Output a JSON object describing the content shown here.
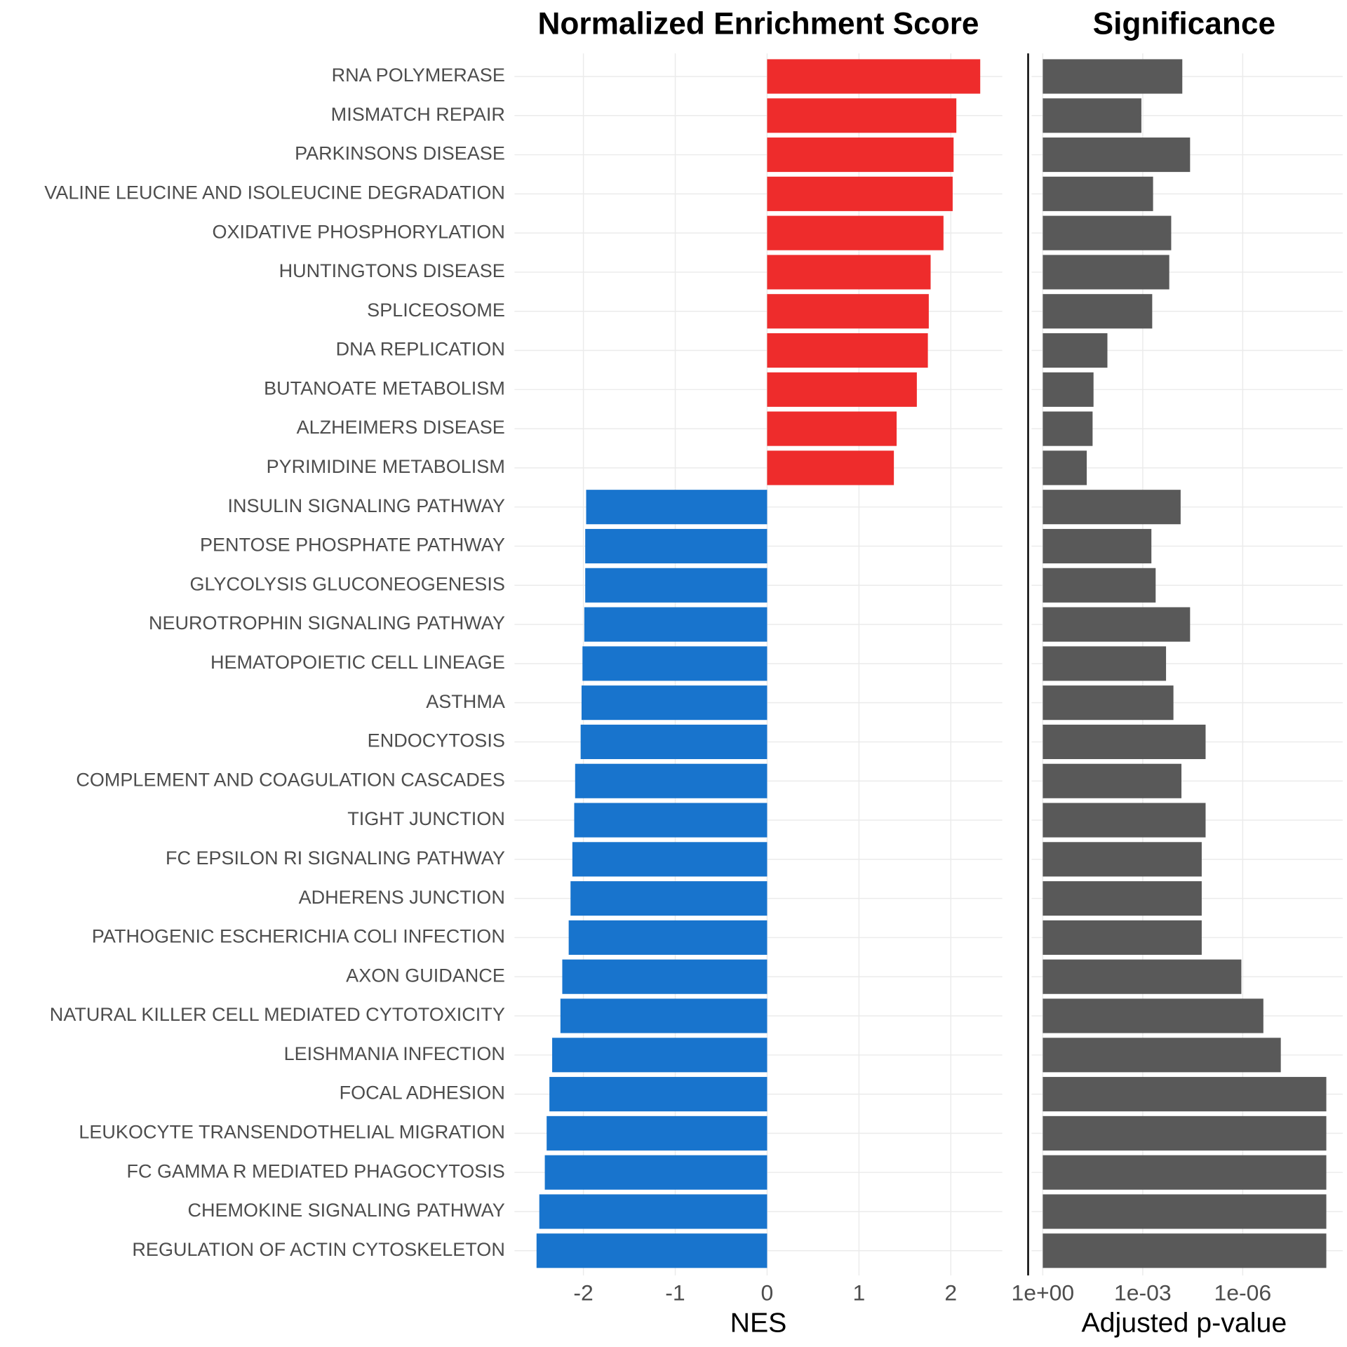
{
  "chart_data": [
    {
      "type": "bar",
      "orientation": "horizontal",
      "title": "Normalized Enrichment Score",
      "xlabel": "NES",
      "categories": [
        "RNA POLYMERASE",
        "MISMATCH REPAIR",
        "PARKINSONS DISEASE",
        "VALINE LEUCINE AND ISOLEUCINE DEGRADATION",
        "OXIDATIVE PHOSPHORYLATION",
        "HUNTINGTONS DISEASE",
        "SPLICEOSOME",
        "DNA REPLICATION",
        "BUTANOATE METABOLISM",
        "ALZHEIMERS DISEASE",
        "PYRIMIDINE METABOLISM",
        "INSULIN SIGNALING PATHWAY",
        "PENTOSE PHOSPHATE PATHWAY",
        "GLYCOLYSIS GLUCONEOGENESIS",
        "NEUROTROPHIN SIGNALING PATHWAY",
        "HEMATOPOIETIC CELL LINEAGE",
        "ASTHMA",
        "ENDOCYTOSIS",
        "COMPLEMENT AND COAGULATION CASCADES",
        "TIGHT JUNCTION",
        "FC EPSILON RI SIGNALING PATHWAY",
        "ADHERENS JUNCTION",
        "PATHOGENIC ESCHERICHIA COLI INFECTION",
        "AXON GUIDANCE",
        "NATURAL KILLER CELL MEDIATED CYTOTOXICITY",
        "LEISHMANIA INFECTION",
        "FOCAL ADHESION",
        "LEUKOCYTE TRANSENDOTHELIAL MIGRATION",
        "FC GAMMA R MEDIATED PHAGOCYTOSIS",
        "CHEMOKINE SIGNALING PATHWAY",
        "REGULATION OF ACTIN CYTOSKELETON"
      ],
      "values": [
        2.32,
        2.06,
        2.03,
        2.02,
        1.92,
        1.78,
        1.76,
        1.75,
        1.63,
        1.41,
        1.38,
        -1.97,
        -1.98,
        -1.98,
        -1.99,
        -2.01,
        -2.02,
        -2.03,
        -2.09,
        -2.1,
        -2.12,
        -2.14,
        -2.16,
        -2.23,
        -2.25,
        -2.34,
        -2.37,
        -2.4,
        -2.42,
        -2.48,
        -2.51
      ],
      "positive_color": "#ee2c2c",
      "negative_color": "#1874cd",
      "xlim": [
        -2.75,
        2.56
      ],
      "xticks": [
        -2,
        -1,
        0,
        1,
        2
      ],
      "grid": true
    },
    {
      "type": "bar",
      "orientation": "horizontal",
      "title": "Significance",
      "xlabel": "Adjusted p-value",
      "log_x": true,
      "values": [
        6.5e-05,
        0.0011,
        3.8e-05,
        0.00049,
        0.00014,
        0.00016,
        0.00052,
        0.0115,
        0.03,
        0.032,
        0.048,
        7.3e-05,
        0.00055,
        0.00041,
        3.8e-05,
        0.0002,
        0.00012,
        1.3e-05,
        6.9e-05,
        1.3e-05,
        1.7e-05,
        1.7e-05,
        1.7e-05,
        1.1e-06,
        2.4e-07,
        7.2e-08,
        3.1e-09,
        3.1e-09,
        3.1e-09,
        3.1e-09,
        3.1e-09
      ],
      "color": "#595959",
      "xlim": [
        1,
        1e-09
      ],
      "xticks": [
        {
          "value": 1,
          "label": "1e+00"
        },
        {
          "value": 0.001,
          "label": "1e-03"
        },
        {
          "value": 1e-06,
          "label": "1e-06"
        }
      ],
      "grid": true
    }
  ]
}
